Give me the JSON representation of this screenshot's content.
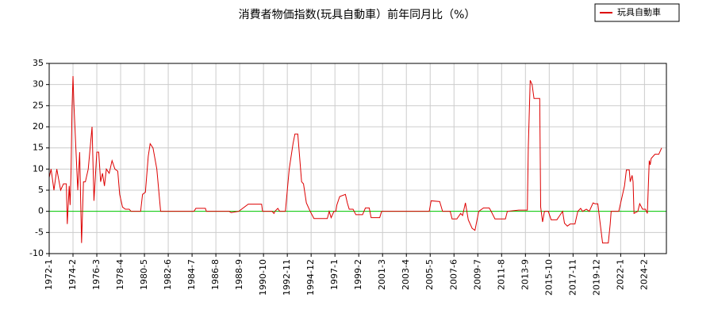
{
  "chart_data": {
    "type": "line",
    "title": "消費者物価指数(玩具自動車）前年同月比（%）",
    "x": [
      "1972-1",
      "1972-3",
      "1972-6",
      "1972-9",
      "1973-1",
      "1973-4",
      "1973-7",
      "1973-8",
      "1973-10",
      "1973-11",
      "1973-12",
      "1974-1",
      "1974-2",
      "1974-3",
      "1974-5",
      "1974-7",
      "1974-9",
      "1974-10",
      "1974-11",
      "1975-1",
      "1975-3",
      "1975-6",
      "1975-10",
      "1975-12",
      "1976-3",
      "1976-5",
      "1976-7",
      "1976-9",
      "1976-11",
      "1977-1",
      "1977-4",
      "1977-7",
      "1977-10",
      "1978-1",
      "1978-3",
      "1978-6",
      "1978-9",
      "1979-1",
      "1979-3",
      "1980-1",
      "1980-3",
      "1980-6",
      "1980-9",
      "1980-11",
      "1981-2",
      "1981-6",
      "1981-10",
      "1984-9",
      "1984-11",
      "1985-9",
      "1985-10",
      "1987-10",
      "1987-12",
      "1988-8",
      "1989-6",
      "1990-8",
      "1990-9",
      "1991-7",
      "1991-9",
      "1991-10",
      "1992-1",
      "1992-3",
      "1992-9",
      "1993-1",
      "1993-5",
      "1993-7",
      "1993-10",
      "1994-2",
      "1994-4",
      "1994-7",
      "1994-11",
      "1995-3",
      "1996-5",
      "1996-7",
      "1996-9",
      "1996-12",
      "1997-2",
      "1997-3",
      "1997-6",
      "1997-12",
      "1998-2",
      "1998-4",
      "1998-8",
      "1998-11",
      "1999-6",
      "1999-9",
      "2000-1",
      "2000-3",
      "2000-12",
      "2001-2",
      "2005-4",
      "2005-6",
      "2006-3",
      "2006-6",
      "2007-2",
      "2007-4",
      "2007-9",
      "2008-1",
      "2008-3",
      "2008-6",
      "2008-9",
      "2009-1",
      "2009-4",
      "2009-8",
      "2010-1",
      "2010-7",
      "2010-9",
      "2011-1",
      "2011-12",
      "2012-2",
      "2013-2",
      "2013-11",
      "2013-12",
      "2014-2",
      "2014-4",
      "2014-6",
      "2014-12",
      "2015-1",
      "2015-3",
      "2015-5",
      "2015-9",
      "2015-12",
      "2016-6",
      "2016-9",
      "2016-12",
      "2017-2",
      "2017-5",
      "2017-8",
      "2018-1",
      "2018-4",
      "2018-7",
      "2018-9",
      "2019-1",
      "2019-4",
      "2019-8",
      "2019-10",
      "2020-1",
      "2020-3",
      "2020-6",
      "2020-12",
      "2021-2",
      "2021-3",
      "2021-11",
      "2022-5",
      "2022-7",
      "2022-10",
      "2022-11",
      "2023-1",
      "2023-2",
      "2023-3",
      "2023-7",
      "2023-9",
      "2023-12",
      "2024-3",
      "2024-5",
      "2024-7",
      "2024-8",
      "2024-9",
      "2025-1",
      "2025-5",
      "2025-8"
    ],
    "series": [
      {
        "name": "玩具自動車",
        "color": "#dd0000",
        "values": [
          8,
          10,
          5,
          10,
          5,
          6.5,
          6.5,
          -3,
          6,
          1.5,
          10,
          24.5,
          32,
          25,
          15,
          5,
          14,
          3,
          -7.5,
          7,
          7,
          10,
          20,
          2.5,
          14,
          14,
          7,
          9,
          6,
          10,
          9,
          12,
          10,
          9.5,
          4,
          1,
          0.5,
          0.5,
          0,
          0,
          4,
          4.5,
          13,
          16,
          15,
          10,
          0,
          0,
          0.7,
          0.7,
          0,
          0,
          -0.3,
          0,
          1.7,
          1.7,
          0,
          0,
          -0.5,
          0,
          0.7,
          0,
          0,
          10,
          16,
          18.3,
          18.3,
          7,
          6.5,
          2,
          0,
          -1.7,
          -1.7,
          0,
          -1.5,
          0,
          0,
          1.5,
          3.5,
          4,
          2,
          0.5,
          0.5,
          -0.8,
          -0.8,
          0.8,
          0.8,
          -1.5,
          -1.5,
          0,
          0,
          2.5,
          2.3,
          0,
          0,
          -1.8,
          -1.8,
          -0.5,
          -1,
          2,
          -2,
          -4,
          -4.5,
          0,
          0.8,
          0.8,
          0,
          -1.8,
          -1.8,
          0,
          0.3,
          0.3,
          15,
          31,
          30,
          26.7,
          26.7,
          1,
          -2.5,
          0,
          0,
          -2,
          -2,
          -1,
          0,
          -2.8,
          -3.5,
          -3,
          -3,
          0,
          0.7,
          0,
          0.5,
          0,
          2,
          1.8,
          1.8,
          -2,
          -7.5,
          -7.5,
          -3,
          0,
          0,
          6,
          9.8,
          9.8,
          7,
          8.5,
          7,
          -0.5,
          0,
          1.8,
          0.5,
          0.5,
          -0.5,
          12,
          11,
          12.5,
          13.5,
          13.5,
          15
        ]
      }
    ],
    "xlim": [
      "1972-1",
      "2026-1"
    ],
    "xticks": [
      "1972-1",
      "1974-2",
      "1976-3",
      "1978-4",
      "1980-5",
      "1982-6",
      "1984-7",
      "1986-8",
      "1988-9",
      "1990-10",
      "1992-11",
      "1994-12",
      "1997-1",
      "1999-2",
      "2001-3",
      "2003-4",
      "2005-5",
      "2007-6",
      "2009-7",
      "2011-8",
      "2013-9",
      "2015-10",
      "2017-11",
      "2019-12",
      "2022-1",
      "2024-2"
    ],
    "ylim": [
      -10,
      35
    ],
    "yticks": [
      -10,
      -5,
      0,
      5,
      10,
      15,
      20,
      25,
      30,
      35
    ],
    "grid": true,
    "zero_line_color": "#00cc00",
    "legend": "top-right"
  }
}
